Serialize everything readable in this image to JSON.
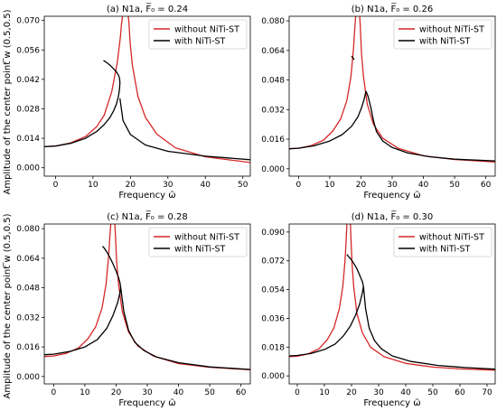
{
  "figure": {
    "ylabel": "Amplitude of the center point ̅w (0.5,0.5)",
    "xlabel": "Frequency ω̃"
  },
  "legend": {
    "without": "without NiTi-ST",
    "with": "with NiTi-ST"
  },
  "colors": {
    "without": "#d62728",
    "with": "#000000"
  },
  "chart_data": [
    {
      "type": "line",
      "title": "(a) N1a, F̅₀ = 0.24",
      "xlim": [
        -3,
        52
      ],
      "ylim": [
        -0.004,
        0.072
      ],
      "xticks": [
        0,
        10,
        20,
        30,
        40,
        50
      ],
      "yticks": [
        0.0,
        0.014,
        0.028,
        0.042,
        0.056,
        0.07
      ],
      "ytick_labels": [
        "0.000",
        "0.014",
        "0.028",
        "0.042",
        "0.056",
        "0.070"
      ],
      "series": [
        {
          "name": "without NiTi-ST",
          "x": [
            -3,
            0,
            4,
            8,
            11,
            13,
            15,
            16.5,
            17.3,
            17.6,
            17.9
          ],
          "y": [
            0.01,
            0.0103,
            0.0118,
            0.0148,
            0.0195,
            0.025,
            0.036,
            0.05,
            0.062,
            0.068,
            0.072
          ]
        },
        {
          "name": "without NiTi-ST",
          "x": [
            19.4,
            19.6,
            19.9,
            20.5,
            22,
            24,
            27,
            32,
            40,
            52
          ],
          "y": [
            0.072,
            0.069,
            0.06,
            0.049,
            0.034,
            0.024,
            0.016,
            0.0095,
            0.0052,
            0.0025
          ]
        },
        {
          "name": "with NiTi-ST",
          "x": [
            -3,
            0,
            4,
            8,
            11,
            13,
            14.5,
            15.5,
            16.3,
            16.8,
            17.1,
            17.2,
            17.1,
            16.8,
            16.3,
            15.5,
            14.5,
            13.5,
            12.8
          ],
          "y": [
            0.01,
            0.0103,
            0.0116,
            0.014,
            0.0172,
            0.0205,
            0.0238,
            0.027,
            0.0305,
            0.034,
            0.0375,
            0.0405,
            0.0425,
            0.044,
            0.0455,
            0.047,
            0.0488,
            0.0502,
            0.051
          ]
        },
        {
          "name": "with NiTi-ST",
          "x": [
            17.2,
            18,
            20,
            24,
            30,
            40,
            52
          ],
          "y": [
            0.033,
            0.0225,
            0.0158,
            0.0108,
            0.0078,
            0.0055,
            0.0038
          ]
        }
      ]
    },
    {
      "type": "line",
      "title": "(b) N1a, F̅₀ = 0.26",
      "xlim": [
        -3,
        63
      ],
      "ylim": [
        -0.004,
        0.0825
      ],
      "xticks": [
        0,
        10,
        20,
        30,
        40,
        50,
        60
      ],
      "yticks": [
        0.0,
        0.016,
        0.032,
        0.048,
        0.064,
        0.08
      ],
      "ytick_labels": [
        "0.000",
        "0.016",
        "0.032",
        "0.048",
        "0.064",
        "0.080"
      ],
      "series": [
        {
          "name": "without NiTi-ST",
          "x": [
            -3,
            0,
            4,
            8,
            11,
            13.5,
            15.5,
            16.8,
            17.6,
            18.0,
            18.3
          ],
          "y": [
            0.0108,
            0.0111,
            0.0125,
            0.0155,
            0.0205,
            0.027,
            0.037,
            0.05,
            0.065,
            0.075,
            0.0825
          ]
        },
        {
          "name": "without NiTi-ST",
          "x": [
            19.6,
            19.8,
            20.2,
            20.8,
            22,
            24,
            27,
            32,
            40,
            50,
            63
          ],
          "y": [
            0.0825,
            0.076,
            0.062,
            0.05,
            0.035,
            0.024,
            0.0165,
            0.011,
            0.007,
            0.005,
            0.0036
          ]
        },
        {
          "name": "with NiTi-ST",
          "x": [
            -3,
            0,
            5,
            10,
            14,
            17,
            19,
            20.2,
            21,
            21.4,
            21.6
          ],
          "y": [
            0.0108,
            0.0111,
            0.0124,
            0.015,
            0.0185,
            0.023,
            0.028,
            0.033,
            0.0375,
            0.0405,
            0.042
          ]
        },
        {
          "name": "with NiTi-ST",
          "x": [
            21.6,
            22.2,
            23.2,
            24,
            25,
            27,
            30,
            35,
            42,
            50,
            63
          ],
          "y": [
            0.042,
            0.0395,
            0.033,
            0.026,
            0.02,
            0.015,
            0.0115,
            0.0085,
            0.0065,
            0.0052,
            0.0042
          ]
        },
        {
          "name": "with NiTi-ST",
          "x": [
            17.0,
            17.4,
            17.8
          ],
          "y": [
            0.061,
            0.06,
            0.059
          ]
        }
      ]
    },
    {
      "type": "line",
      "title": "(c) N1a, F̅₀ = 0.28",
      "xlim": [
        -3,
        63
      ],
      "ylim": [
        -0.004,
        0.0825
      ],
      "xticks": [
        0,
        10,
        20,
        30,
        40,
        50,
        60
      ],
      "yticks": [
        0.0,
        0.016,
        0.032,
        0.048,
        0.064,
        0.08
      ],
      "ytick_labels": [
        "0.000",
        "0.016",
        "0.032",
        "0.048",
        "0.064",
        "0.080"
      ],
      "series": [
        {
          "name": "without NiTi-ST",
          "x": [
            -3,
            0,
            4,
            8,
            11,
            13.5,
            15.5,
            16.8,
            17.6,
            18.0,
            18.3
          ],
          "y": [
            0.0108,
            0.0111,
            0.0125,
            0.0155,
            0.0205,
            0.027,
            0.037,
            0.05,
            0.065,
            0.075,
            0.0825
          ]
        },
        {
          "name": "without NiTi-ST",
          "x": [
            19.6,
            19.8,
            20.2,
            20.8,
            22,
            24,
            27,
            32,
            40,
            50,
            63
          ],
          "y": [
            0.0825,
            0.076,
            0.062,
            0.05,
            0.035,
            0.024,
            0.0165,
            0.011,
            0.007,
            0.005,
            0.0036
          ]
        },
        {
          "name": "with NiTi-ST",
          "x": [
            -3,
            0,
            5,
            10,
            14,
            17,
            19,
            20.5,
            21.2,
            21.5
          ],
          "y": [
            0.0118,
            0.0121,
            0.0135,
            0.016,
            0.02,
            0.026,
            0.033,
            0.04,
            0.045,
            0.048
          ]
        },
        {
          "name": "with NiTi-ST",
          "x": [
            21.5,
            21.3,
            20.8,
            20,
            19,
            18,
            17,
            16.2,
            15.6
          ],
          "y": [
            0.048,
            0.0505,
            0.0535,
            0.057,
            0.061,
            0.0645,
            0.0675,
            0.0695,
            0.0705
          ]
        },
        {
          "name": "with NiTi-ST",
          "x": [
            21.5,
            22.5,
            24,
            26,
            29,
            33,
            40,
            50,
            63
          ],
          "y": [
            0.048,
            0.035,
            0.025,
            0.0185,
            0.014,
            0.0105,
            0.0075,
            0.0052,
            0.0038
          ]
        }
      ]
    },
    {
      "type": "line",
      "title": "(d) N1a, F̅₀ = 0.30",
      "xlim": [
        -3,
        73
      ],
      "ylim": [
        -0.005,
        0.095
      ],
      "xticks": [
        0,
        10,
        20,
        30,
        40,
        50,
        60,
        70
      ],
      "yticks": [
        0.0,
        0.018,
        0.036,
        0.054,
        0.072,
        0.09
      ],
      "ytick_labels": [
        "0.000",
        "0.018",
        "0.036",
        "0.054",
        "0.072",
        "0.090"
      ],
      "series": [
        {
          "name": "without NiTi-ST",
          "x": [
            -3,
            0,
            4,
            8,
            11,
            13.5,
            15.5,
            16.8,
            17.6,
            18.0,
            18.3
          ],
          "y": [
            0.012,
            0.0123,
            0.0138,
            0.017,
            0.0225,
            0.03,
            0.042,
            0.056,
            0.072,
            0.084,
            0.095
          ]
        },
        {
          "name": "without NiTi-ST",
          "x": [
            19.6,
            19.8,
            20.2,
            20.8,
            22,
            24,
            27,
            32,
            40,
            50,
            60,
            73
          ],
          "y": [
            0.095,
            0.086,
            0.07,
            0.056,
            0.039,
            0.027,
            0.018,
            0.012,
            0.0078,
            0.0055,
            0.0044,
            0.0036
          ]
        },
        {
          "name": "with NiTi-ST",
          "x": [
            -3,
            0,
            5,
            10,
            14,
            17,
            19.5,
            21.5,
            23,
            24,
            24.4
          ],
          "y": [
            0.0125,
            0.0128,
            0.014,
            0.0165,
            0.02,
            0.025,
            0.031,
            0.038,
            0.045,
            0.052,
            0.056
          ]
        },
        {
          "name": "with NiTi-ST",
          "x": [
            24.4,
            24,
            23,
            22,
            21,
            20,
            19,
            18.3
          ],
          "y": [
            0.056,
            0.059,
            0.063,
            0.067,
            0.07,
            0.0725,
            0.0745,
            0.076
          ]
        },
        {
          "name": "with NiTi-ST",
          "x": [
            24.4,
            25.2,
            26.5,
            28.5,
            31,
            35,
            42,
            52,
            62,
            73
          ],
          "y": [
            0.056,
            0.042,
            0.03,
            0.022,
            0.017,
            0.0125,
            0.009,
            0.0065,
            0.0052,
            0.0042
          ]
        }
      ]
    }
  ]
}
